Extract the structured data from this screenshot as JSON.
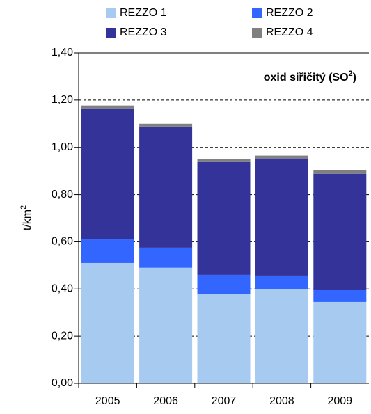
{
  "chart_data": {
    "type": "stacked_bar",
    "title": [
      "oxid siřičitý (SO",
      "2",
      ")"
    ],
    "y_label": [
      "t/km",
      "2"
    ],
    "categories": [
      "2005",
      "2006",
      "2007",
      "2008",
      "2009"
    ],
    "series": [
      {
        "name": "REZZO 1",
        "color": "#a6caf0",
        "values": [
          0.51,
          0.49,
          0.378,
          0.4,
          0.345
        ]
      },
      {
        "name": "REZZO 2",
        "color": "#3366ff",
        "values": [
          0.1,
          0.085,
          0.082,
          0.057,
          0.05
        ]
      },
      {
        "name": "REZZO 3",
        "color": "#333399",
        "values": [
          0.555,
          0.513,
          0.478,
          0.496,
          0.493
        ]
      },
      {
        "name": "REZZO 4",
        "color": "#808080",
        "values": [
          0.012,
          0.012,
          0.012,
          0.012,
          0.015
        ]
      }
    ],
    "ylim": [
      0,
      1.4
    ],
    "yticks": [
      {
        "value": 0,
        "label": "0,00"
      },
      {
        "value": 0.2,
        "label": "0,20"
      },
      {
        "value": 0.4,
        "label": "0,40"
      },
      {
        "value": 0.6,
        "label": "0,60"
      },
      {
        "value": 0.8,
        "label": "0,80"
      },
      {
        "value": 1.0,
        "label": "1,00"
      },
      {
        "value": 1.2,
        "label": "1,20"
      },
      {
        "value": 1.4,
        "label": "1,40"
      }
    ],
    "grid": true
  }
}
